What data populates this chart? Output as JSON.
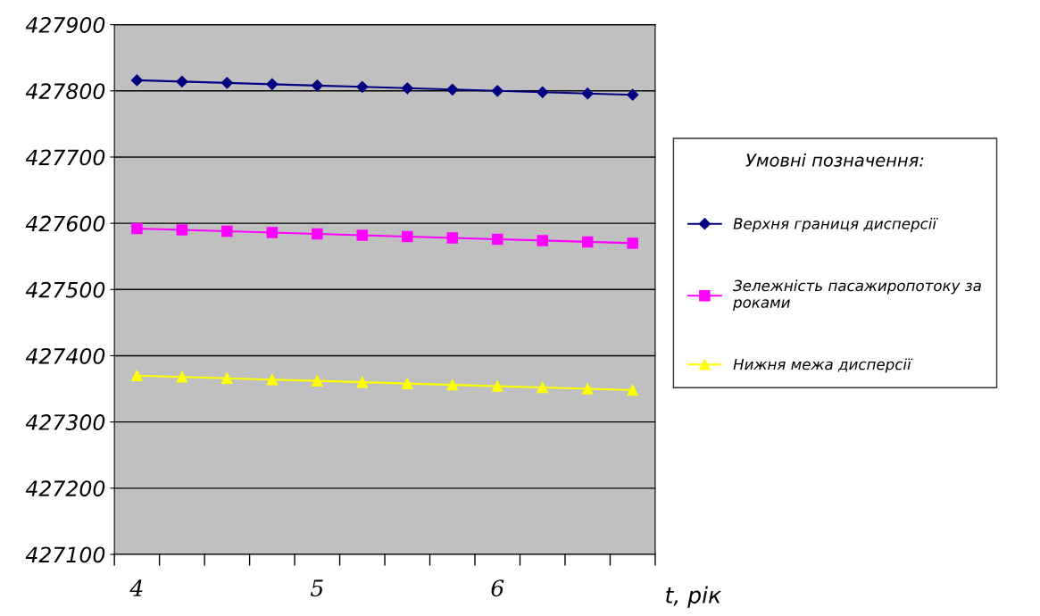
{
  "chart_data": {
    "type": "line",
    "xlabel": "t, рік",
    "legend_title": "Умовні позначення:",
    "categories": [
      "4",
      null,
      null,
      null,
      "5",
      null,
      null,
      null,
      "6",
      null,
      null,
      null
    ],
    "ylim": [
      427100,
      427900
    ],
    "yticks": [
      427100,
      427200,
      427300,
      427400,
      427500,
      427600,
      427700,
      427800,
      427900
    ],
    "grid": "y",
    "legend": "right",
    "line_style": "solid",
    "series": [
      {
        "name": "Верхня границя дисперсії",
        "color": "#000080",
        "marker": "diamond",
        "values": [
          427816,
          427814,
          427812,
          427810,
          427808,
          427806,
          427804,
          427802,
          427800,
          427798,
          427796,
          427794
        ]
      },
      {
        "name": "Зележність пасажиропотоку за роками",
        "color": "#ff00ff",
        "marker": "square",
        "values": [
          427592,
          427590,
          427588,
          427586,
          427584,
          427582,
          427580,
          427578,
          427576,
          427574,
          427572,
          427570
        ]
      },
      {
        "name": "Нижня межа дисперсії",
        "color": "#ffff00",
        "marker": "triangle",
        "values": [
          427370,
          427368,
          427366,
          427364,
          427362,
          427360,
          427358,
          427356,
          427354,
          427352,
          427350,
          427348
        ]
      }
    ]
  }
}
